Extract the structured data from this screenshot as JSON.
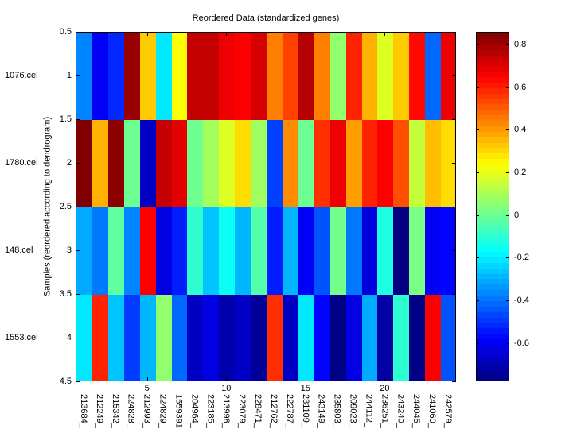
{
  "chart_data": {
    "type": "heatmap",
    "title": "Reordered Data (standardized genes)",
    "ylabel": "Samples (reordered according to dendrogram)",
    "xlabel": "",
    "rows": [
      "1076.cel",
      "1780.cel",
      "148.cel",
      "1553.cel"
    ],
    "columns": [
      "213684_",
      "212249_",
      "215342_",
      "224828_",
      "212993_",
      "224829_",
      "1559391",
      "204964_",
      "223185_",
      "213998_",
      "223079_",
      "228471_",
      "212762_",
      "222787_",
      "231109_",
      "243149_",
      "235803_",
      "209023_",
      "244112_",
      "236251_",
      "243240_",
      "244045_",
      "241060_",
      "242579_"
    ],
    "values": [
      [
        -0.36,
        -0.59,
        -0.51,
        0.82,
        0.33,
        -0.2,
        0.24,
        0.75,
        0.75,
        0.68,
        0.66,
        0.72,
        0.45,
        0.55,
        0.77,
        0.45,
        0.07,
        0.6,
        0.37,
        0.19,
        0.33,
        0.64,
        -0.41,
        0.68
      ],
      [
        0.86,
        0.37,
        0.84,
        0.01,
        -0.67,
        0.75,
        0.7,
        0.01,
        0.1,
        0.19,
        0.3,
        0.09,
        -0.47,
        0.43,
        0.01,
        0.58,
        0.68,
        0.4,
        0.6,
        0.66,
        0.53,
        0.15,
        0.35,
        0.3
      ],
      [
        -0.3,
        -0.38,
        -0.01,
        -0.36,
        0.66,
        -0.62,
        -0.53,
        -0.09,
        -0.26,
        -0.15,
        -0.28,
        -0.03,
        -0.53,
        -0.28,
        -0.59,
        -0.44,
        0.02,
        -0.38,
        -0.63,
        -0.12,
        -0.78,
        0.03,
        -0.59,
        -0.57
      ],
      [
        -0.2,
        0.6,
        -0.26,
        -0.48,
        -0.28,
        0.07,
        -0.41,
        -0.67,
        -0.62,
        -0.71,
        -0.67,
        -0.74,
        0.58,
        -0.67,
        -0.2,
        -0.57,
        -0.77,
        -0.62,
        -0.3,
        -0.72,
        -0.09,
        -0.77,
        0.66,
        -0.44
      ]
    ],
    "colormap": "jet",
    "clim": [
      -0.78,
      0.86
    ],
    "xlim": [
      0.5,
      24.5
    ],
    "ylim": [
      0.5,
      4.5
    ],
    "x_ticks": [
      5,
      10,
      15,
      20
    ],
    "y_ticks": [
      "0.5",
      "1",
      "1.5",
      "2",
      "2.5",
      "3",
      "3.5",
      "4",
      "4.5"
    ],
    "colorbar_ticks": [
      "0.8",
      "0.6",
      "0.4",
      "0.2",
      "0",
      "-0.2",
      "-0.4",
      "-0.6"
    ]
  }
}
